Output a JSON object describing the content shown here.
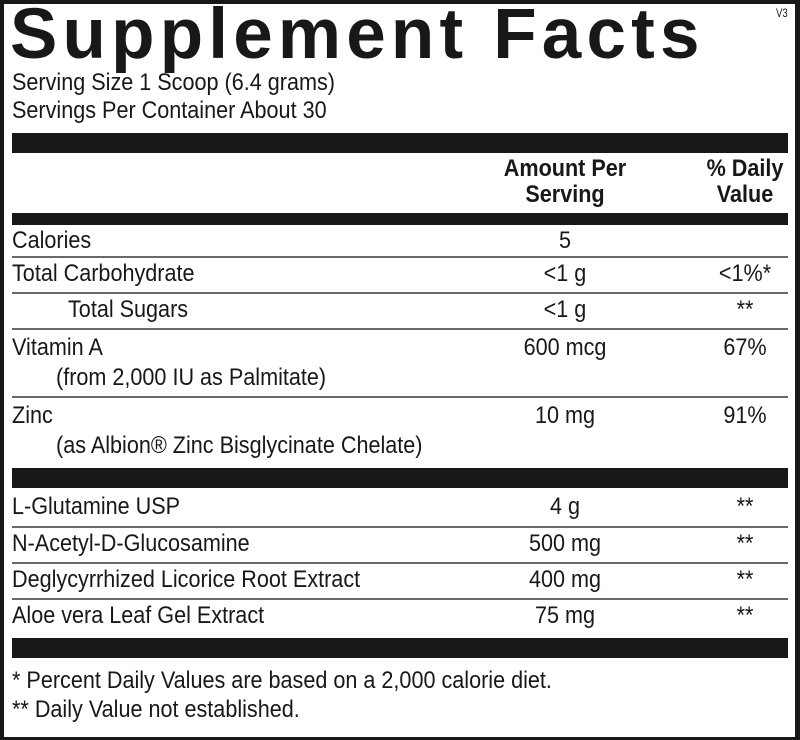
{
  "title": "Supplement Facts",
  "version": "V3",
  "serving_size": "Serving Size 1 Scoop (6.4 grams)",
  "servings_per_container": "Servings Per Container About 30",
  "header": {
    "amount_line1": "Amount Per",
    "amount_line2": "Serving",
    "dv_line1": "% Daily",
    "dv_line2": "Value"
  },
  "rows": [
    {
      "name": "Calories",
      "amount": "5",
      "dv": ""
    },
    {
      "name": "Total Carbohydrate",
      "amount": "<1 g",
      "dv": "<1%*"
    },
    {
      "name": "Total Sugars",
      "amount": "<1 g",
      "dv": "**"
    },
    {
      "name": "Vitamin A",
      "sub": "(from 2,000 IU as Palmitate)",
      "amount": "600 mcg",
      "dv": "67%"
    },
    {
      "name": "Zinc",
      "sub": "(as Albion® Zinc Bisglycinate Chelate)",
      "amount": "10 mg",
      "dv": "91%"
    },
    {
      "name": "L-Glutamine USP",
      "amount": "4 g",
      "dv": "**"
    },
    {
      "name": "N-Acetyl-D-Glucosamine",
      "amount": "500 mg",
      "dv": "**"
    },
    {
      "name": "Deglycyrrhized Licorice Root Extract",
      "amount": "400 mg",
      "dv": "**"
    },
    {
      "name": "Aloe vera Leaf Gel Extract",
      "amount": "75 mg",
      "dv": "**"
    }
  ],
  "footnotes": [
    "* Percent Daily Values are based on a 2,000 calorie diet.",
    "** Daily Value not established."
  ]
}
